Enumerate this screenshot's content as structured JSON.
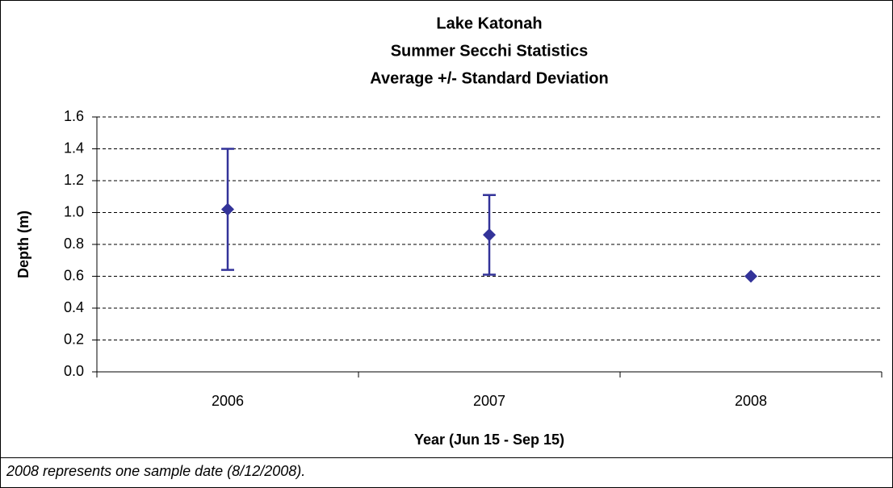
{
  "chart_data": {
    "type": "errorbar",
    "title": [
      "Lake Katonah",
      "Summer Secchi Statistics",
      "Average +/- Standard Deviation"
    ],
    "x_label": "Year (Jun 15 - Sep 15)",
    "y_label": "Depth (m)",
    "note": "2008 represents one sample date (8/12/2008).",
    "categories": [
      "2006",
      "2007",
      "2008"
    ],
    "values": [
      1.02,
      0.86,
      0.6
    ],
    "errors": [
      0.38,
      0.25,
      null
    ],
    "color": "#333399",
    "ylim": [
      0,
      1.6
    ],
    "yticks": [
      {
        "value": 0,
        "label": "0.0"
      },
      0.2,
      0.4,
      0.6,
      0.8,
      {
        "value": 1,
        "label": "1.0"
      },
      1.2,
      1.4,
      1.6
    ],
    "grid": true
  }
}
